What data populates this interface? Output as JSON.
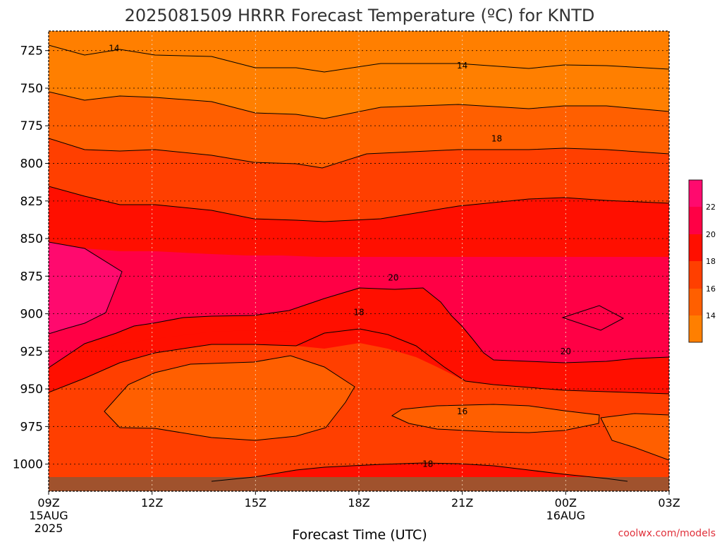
{
  "title": "2025081509 HRRR Forecast Temperature (ºC) for KNTD",
  "xlabel": "Forecast Time (UTC)",
  "watermark": "coolwx.com/models",
  "colors": {
    "c12": "#ff7f00",
    "c14": "#ff5f00",
    "c16": "#ff3f00",
    "c18": "#ff0f00",
    "c20": "#ff0045",
    "c22": "#ff0a6e",
    "ground": "#a0522d",
    "grid": "#c8c8c8"
  },
  "chart_data": {
    "type": "contour",
    "title": "2025081509 HRRR Forecast Temperature (ºC) for KNTD",
    "xlabel": "Forecast Time (UTC)",
    "ylabel": "",
    "x_ticks": [
      {
        "label": "09Z",
        "sub1": "15AUG",
        "sub2": "2025"
      },
      {
        "label": "12Z",
        "sub1": "",
        "sub2": ""
      },
      {
        "label": "15Z",
        "sub1": "",
        "sub2": ""
      },
      {
        "label": "18Z",
        "sub1": "",
        "sub2": ""
      },
      {
        "label": "21Z",
        "sub1": "",
        "sub2": ""
      },
      {
        "label": "00Z",
        "sub1": "16AUG",
        "sub2": ""
      },
      {
        "label": "03Z",
        "sub1": "",
        "sub2": ""
      }
    ],
    "x_range_hours": [
      0,
      18
    ],
    "y_ticks": [
      "725",
      "750",
      "775",
      "800",
      "825",
      "850",
      "875",
      "900",
      "925",
      "950",
      "975",
      "1000"
    ],
    "y_range_hpa": [
      712,
      1018
    ],
    "contour_levels": [
      14,
      16,
      18,
      20,
      22
    ],
    "colorbar_labels": [
      "22",
      "20",
      "18",
      "16",
      "14"
    ],
    "contour_labels": [
      {
        "text": "14",
        "hour": 1.9,
        "p": 723.5
      },
      {
        "text": "14",
        "hour": 12.0,
        "p": 735.0
      },
      {
        "text": "18",
        "hour": 13.0,
        "p": 783.5
      },
      {
        "text": "20",
        "hour": 10.0,
        "p": 876.0
      },
      {
        "text": "18",
        "hour": 9.0,
        "p": 899.0
      },
      {
        "text": "20",
        "hour": 15.0,
        "p": 925.0
      },
      {
        "text": "16",
        "hour": 12.0,
        "p": 965.0
      },
      {
        "text": "18",
        "hour": 11.0,
        "p": 1000.0
      }
    ],
    "grid": true,
    "legend": "right"
  }
}
